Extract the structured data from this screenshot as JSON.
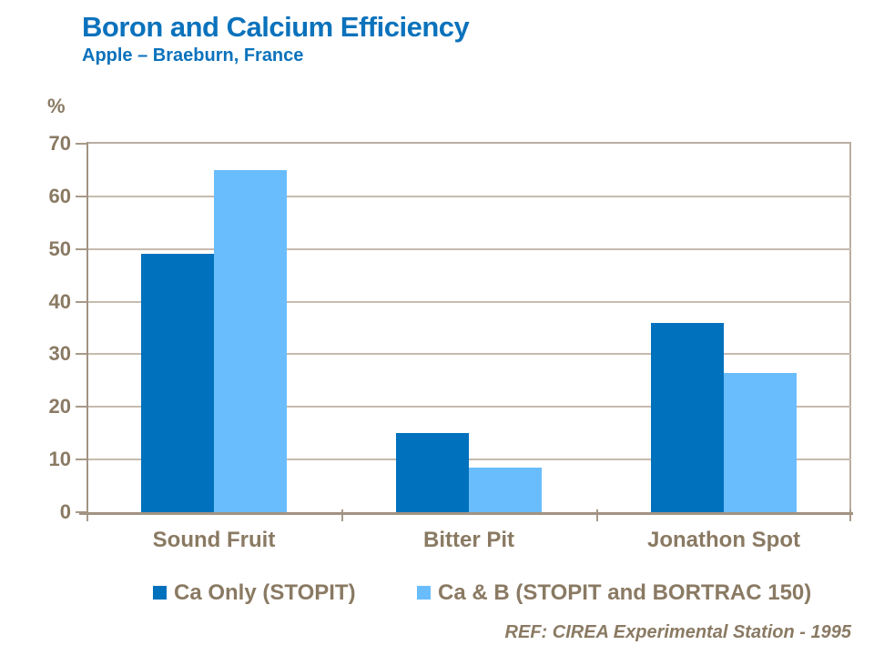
{
  "title": "Boron and Calcium Efficiency",
  "subtitle": "Apple – Braeburn, France",
  "footer": {
    "ref_text": "REF: CIREA Experimental Station - 1995"
  },
  "colors": {
    "title_blue": "#0b72bc",
    "series1_dark_blue": "#0071bd",
    "series2_light_blue": "#6abdfc",
    "axis_text_brown": "#8a7a63",
    "axis_line": "#a29382",
    "gridline": "#c6bbae"
  },
  "chart_data": {
    "type": "bar",
    "title": "Boron and Calcium Efficiency",
    "subtitle": "Apple – Braeburn, France",
    "xlabel": "",
    "ylabel": "%",
    "ylim": [
      0,
      70
    ],
    "yticks": [
      0,
      10,
      20,
      30,
      40,
      50,
      60,
      70
    ],
    "grid": true,
    "legend_position": "bottom",
    "categories": [
      "Sound Fruit",
      "Bitter Pit",
      "Jonathon Spot"
    ],
    "series": [
      {
        "name": "Ca Only (STOPIT)",
        "color": "#0071bd",
        "values": [
          49,
          15,
          36
        ]
      },
      {
        "name": "Ca & B (STOPIT and BORTRAC 150)",
        "color": "#6abdfc",
        "values": [
          65,
          8.5,
          26.5
        ]
      }
    ],
    "annotation": "REF: CIREA Experimental Station - 1995"
  }
}
